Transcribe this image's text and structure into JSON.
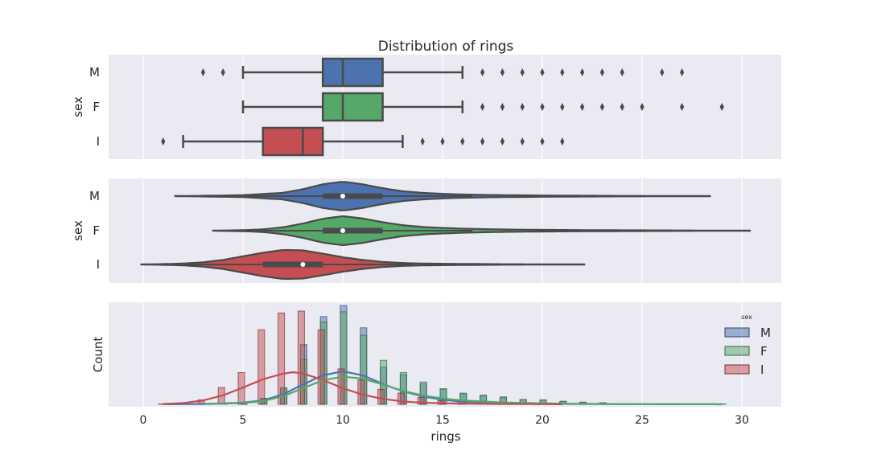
{
  "figure": {
    "title": "Distribution of rings",
    "xlabel": "rings"
  },
  "chart_data": [
    {
      "type": "box",
      "title": "Distribution of rings",
      "xlabel": "",
      "ylabel": "sex",
      "xlim": [
        -1.5,
        32
      ],
      "x_ticks": [
        0,
        5,
        10,
        15,
        20,
        25,
        30
      ],
      "grid": true,
      "categories": [
        "M",
        "F",
        "I"
      ],
      "boxes": [
        {
          "name": "M",
          "color": "#4c72b0",
          "whisker_low": 5,
          "q1": 9,
          "median": 10,
          "q3": 12,
          "whisker_high": 16,
          "outliers": [
            3,
            4,
            17,
            18,
            19,
            20,
            21,
            22,
            23,
            24,
            26,
            27
          ]
        },
        {
          "name": "F",
          "color": "#55a868",
          "whisker_low": 5,
          "q1": 9,
          "median": 10,
          "q3": 12,
          "whisker_high": 16,
          "outliers": [
            17,
            18,
            19,
            20,
            21,
            22,
            23,
            24,
            25,
            27,
            29
          ]
        },
        {
          "name": "I",
          "color": "#c44e52",
          "whisker_low": 2,
          "q1": 6,
          "median": 8,
          "q3": 9,
          "whisker_high": 13,
          "outliers": [
            1,
            14,
            15,
            16,
            17,
            18,
            19,
            20,
            21
          ]
        }
      ]
    },
    {
      "type": "violin",
      "xlabel": "",
      "ylabel": "sex",
      "xlim": [
        -1.5,
        32
      ],
      "x_ticks": [
        0,
        5,
        10,
        15,
        20,
        25,
        30
      ],
      "grid": true,
      "categories": [
        "M",
        "F",
        "I"
      ],
      "violins": [
        {
          "name": "M",
          "color": "#4c72b0",
          "min": 1.6,
          "max": 28.4,
          "q1": 9,
          "median": 10,
          "q3": 12,
          "density": [
            [
              1.6,
              0.005
            ],
            [
              3,
              0.02
            ],
            [
              5,
              0.06
            ],
            [
              7,
              0.2
            ],
            [
              8,
              0.42
            ],
            [
              9,
              0.72
            ],
            [
              10,
              0.88
            ],
            [
              11,
              0.72
            ],
            [
              12,
              0.48
            ],
            [
              13,
              0.3
            ],
            [
              14,
              0.2
            ],
            [
              15,
              0.14
            ],
            [
              16,
              0.1
            ],
            [
              18,
              0.06
            ],
            [
              20,
              0.04
            ],
            [
              22,
              0.025
            ],
            [
              24,
              0.015
            ],
            [
              26,
              0.01
            ],
            [
              28.4,
              0.004
            ]
          ]
        },
        {
          "name": "F",
          "color": "#55a868",
          "min": 3.5,
          "max": 30.4,
          "q1": 9,
          "median": 10,
          "q3": 12,
          "density": [
            [
              3.5,
              0.005
            ],
            [
              5,
              0.03
            ],
            [
              6,
              0.08
            ],
            [
              7,
              0.2
            ],
            [
              8,
              0.42
            ],
            [
              9,
              0.7
            ],
            [
              10,
              0.85
            ],
            [
              11,
              0.72
            ],
            [
              12,
              0.5
            ],
            [
              13,
              0.32
            ],
            [
              14,
              0.22
            ],
            [
              15,
              0.16
            ],
            [
              16,
              0.12
            ],
            [
              18,
              0.07
            ],
            [
              20,
              0.05
            ],
            [
              22,
              0.035
            ],
            [
              24,
              0.025
            ],
            [
              26,
              0.018
            ],
            [
              28,
              0.01
            ],
            [
              30.4,
              0.004
            ]
          ]
        },
        {
          "name": "I",
          "color": "#c44e52",
          "min": -0.1,
          "max": 22.1,
          "q1": 6,
          "median": 8,
          "q3": 9,
          "density": [
            [
              -0.1,
              0.005
            ],
            [
              1,
              0.02
            ],
            [
              2,
              0.05
            ],
            [
              3,
              0.12
            ],
            [
              4,
              0.25
            ],
            [
              5,
              0.45
            ],
            [
              6,
              0.65
            ],
            [
              7,
              0.8
            ],
            [
              8,
              0.78
            ],
            [
              9,
              0.6
            ],
            [
              10,
              0.4
            ],
            [
              11,
              0.25
            ],
            [
              12,
              0.14
            ],
            [
              13,
              0.08
            ],
            [
              14,
              0.05
            ],
            [
              16,
              0.03
            ],
            [
              18,
              0.015
            ],
            [
              20,
              0.008
            ],
            [
              22.1,
              0.003
            ]
          ]
        }
      ]
    },
    {
      "type": "histogram",
      "xlabel": "rings",
      "ylabel": "Count",
      "xlim": [
        -1.5,
        32
      ],
      "ylim": [
        0,
        270
      ],
      "x_ticks": [
        0,
        5,
        10,
        15,
        20,
        25,
        30
      ],
      "grid": true,
      "legend": {
        "title": "sex",
        "position": "right",
        "entries": [
          "M",
          "F",
          "I"
        ]
      },
      "series": [
        {
          "name": "M",
          "color": "#4c72b0",
          "values": {
            "3": 1,
            "4": 2,
            "5": 4,
            "6": 16,
            "7": 44,
            "8": 160,
            "9": 235,
            "10": 265,
            "11": 205,
            "12": 100,
            "13": 80,
            "14": 55,
            "15": 40,
            "16": 28,
            "17": 22,
            "18": 18,
            "19": 13,
            "20": 11,
            "21": 8,
            "22": 5,
            "23": 4,
            "24": 2,
            "26": 1,
            "27": 1
          },
          "kde": [
            [
              1,
              0.002
            ],
            [
              3,
              0.01
            ],
            [
              5,
              0.05
            ],
            [
              6,
              0.12
            ],
            [
              7,
              0.3
            ],
            [
              8,
              0.6
            ],
            [
              9,
              0.88
            ],
            [
              10,
              1.0
            ],
            [
              11,
              0.88
            ],
            [
              12,
              0.62
            ],
            [
              13,
              0.4
            ],
            [
              14,
              0.24
            ],
            [
              15,
              0.14
            ],
            [
              16,
              0.08
            ],
            [
              18,
              0.04
            ],
            [
              20,
              0.02
            ],
            [
              22,
              0.01
            ],
            [
              25,
              0.004
            ],
            [
              29,
              0.001
            ]
          ]
        },
        {
          "name": "F",
          "color": "#55a868",
          "values": {
            "5": 4,
            "6": 16,
            "7": 44,
            "8": 120,
            "9": 220,
            "10": 248,
            "11": 185,
            "12": 118,
            "13": 85,
            "14": 60,
            "15": 42,
            "16": 30,
            "17": 25,
            "18": 20,
            "19": 13,
            "20": 12,
            "21": 8,
            "22": 6,
            "23": 4,
            "24": 2,
            "25": 1,
            "27": 1,
            "29": 1
          },
          "kde": [
            [
              3,
              0.005
            ],
            [
              5,
              0.04
            ],
            [
              6,
              0.1
            ],
            [
              7,
              0.25
            ],
            [
              8,
              0.5
            ],
            [
              9,
              0.75
            ],
            [
              10,
              0.86
            ],
            [
              11,
              0.8
            ],
            [
              12,
              0.62
            ],
            [
              13,
              0.42
            ],
            [
              14,
              0.28
            ],
            [
              15,
              0.18
            ],
            [
              16,
              0.12
            ],
            [
              18,
              0.06
            ],
            [
              20,
              0.03
            ],
            [
              22,
              0.015
            ],
            [
              25,
              0.006
            ],
            [
              29,
              0.002
            ]
          ]
        },
        {
          "name": "I",
          "color": "#c44e52",
          "values": {
            "1": 1,
            "2": 3,
            "3": 12,
            "4": 45,
            "5": 85,
            "6": 200,
            "7": 245,
            "8": 250,
            "9": 200,
            "10": 95,
            "11": 65,
            "12": 40,
            "13": 30,
            "14": 18,
            "15": 10,
            "16": 8,
            "17": 6,
            "18": 4,
            "19": 3,
            "20": 2,
            "21": 1
          },
          "kde": [
            [
              1,
              0.01
            ],
            [
              2,
              0.04
            ],
            [
              3,
              0.12
            ],
            [
              4,
              0.28
            ],
            [
              5,
              0.52
            ],
            [
              6,
              0.78
            ],
            [
              7,
              0.95
            ],
            [
              7.5,
              1.0
            ],
            [
              8,
              0.96
            ],
            [
              9,
              0.76
            ],
            [
              10,
              0.5
            ],
            [
              11,
              0.3
            ],
            [
              12,
              0.17
            ],
            [
              13,
              0.09
            ],
            [
              14,
              0.05
            ],
            [
              16,
              0.02
            ],
            [
              18,
              0.01
            ],
            [
              21,
              0.003
            ]
          ]
        }
      ]
    }
  ]
}
